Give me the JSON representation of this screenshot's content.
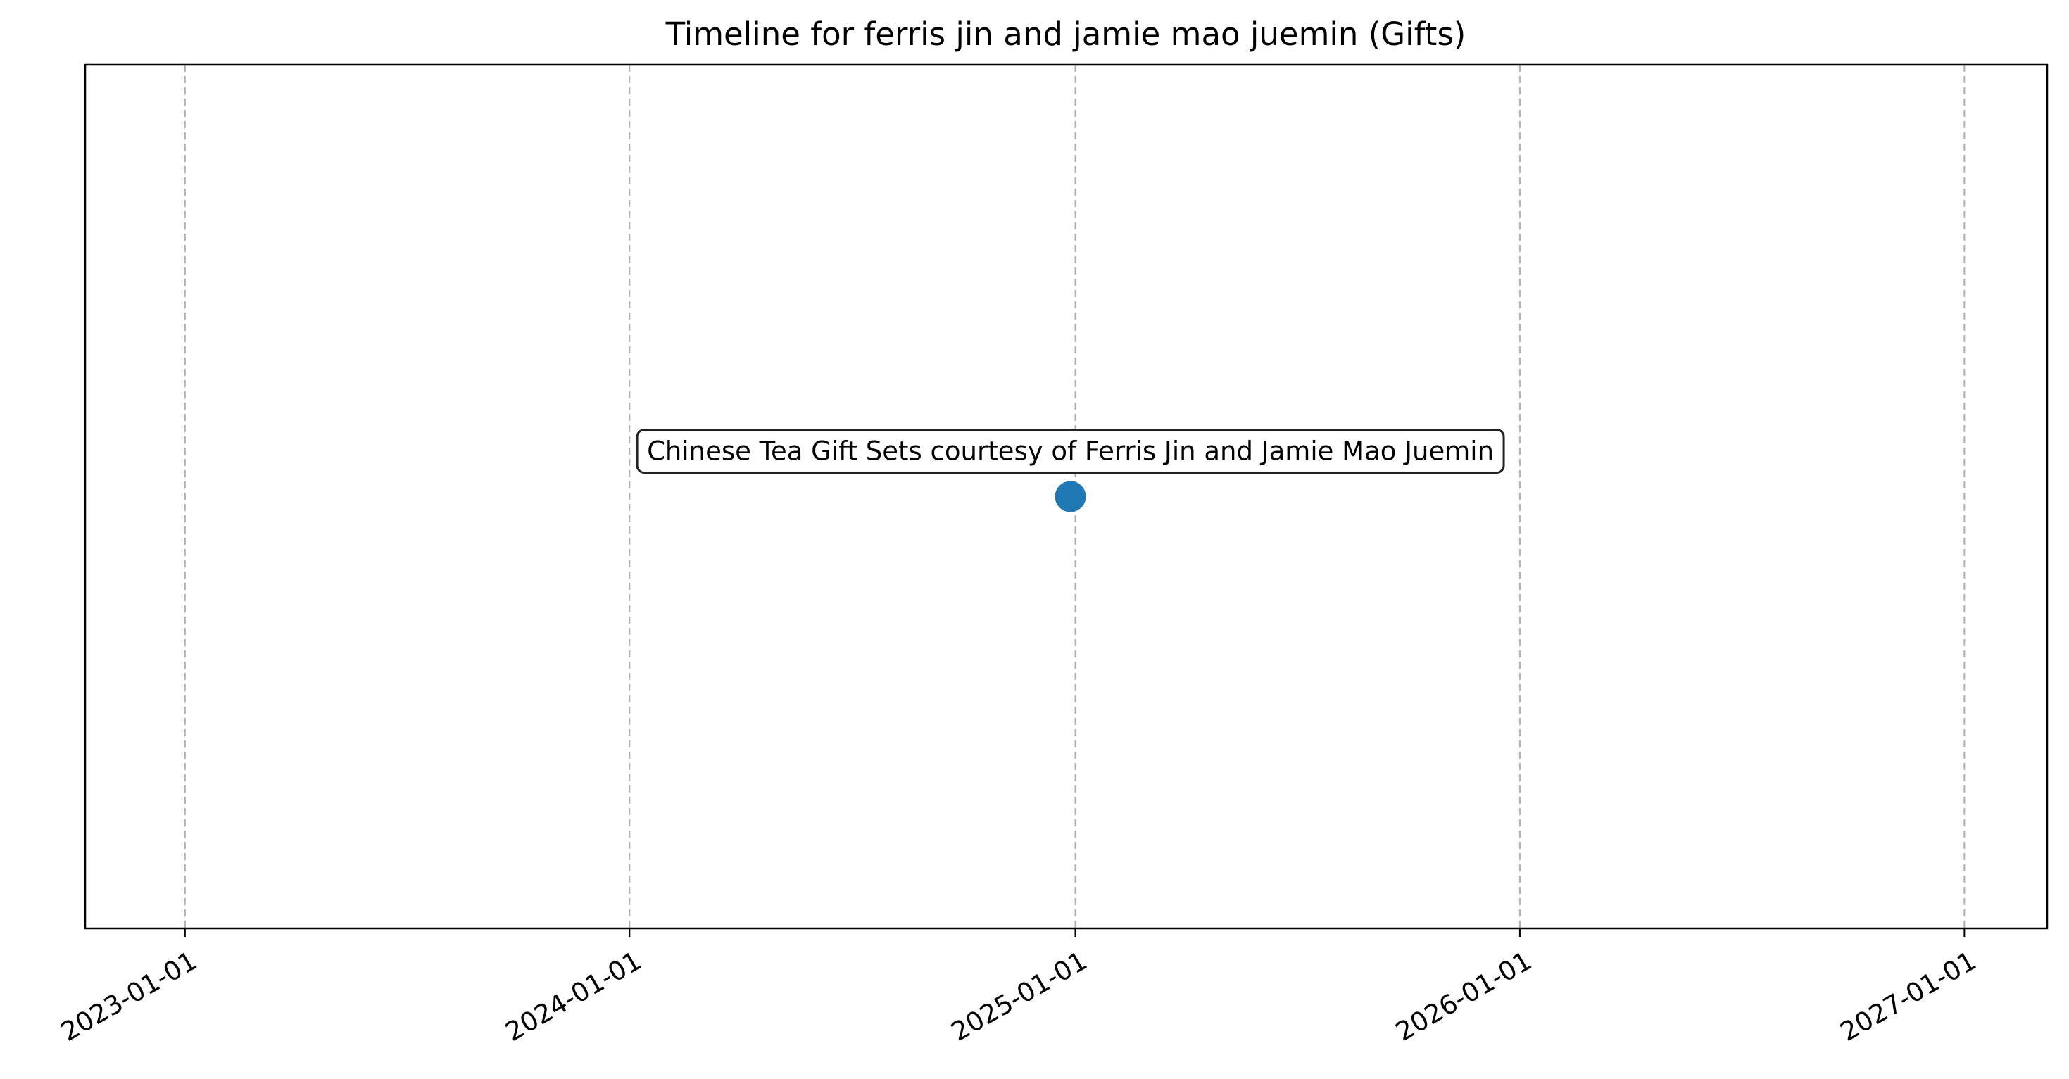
{
  "chart_data": {
    "type": "scatter",
    "title": "Timeline for ferris jin and jamie mao juemin (Gifts)",
    "xlabel": "",
    "ylabel": "",
    "x_axis_type": "date",
    "xlim": [
      "2022-10-11",
      "2027-03-10"
    ],
    "x_ticks": [
      "2023-01-01",
      "2024-01-01",
      "2025-01-01",
      "2026-01-01",
      "2027-01-01"
    ],
    "ylim": [
      -1,
      1
    ],
    "y_ticks_visible": false,
    "grid": "x-axis vertical dashed",
    "legend": "none",
    "points": [
      {
        "x": "2024-12-28",
        "y": 0,
        "label": "Chinese Tea Gift Sets courtesy of Ferris Jin and Jamie Mao Juemin",
        "color": "#1f77b4"
      }
    ]
  }
}
